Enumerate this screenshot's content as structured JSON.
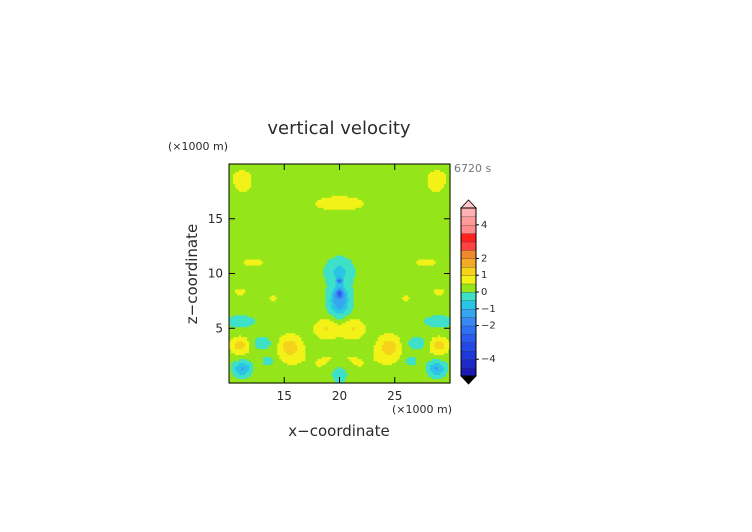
{
  "chart_data": {
    "type": "heatmap",
    "title": "vertical velocity",
    "time_label": "6720 s",
    "xlabel": "x−coordinate",
    "ylabel": "z−coordinate",
    "x_unit": "(×1000 m)",
    "y_unit": "(×1000 m)",
    "xlim": [
      10,
      30
    ],
    "ylim": [
      0,
      20
    ],
    "x_ticks": [
      15,
      20,
      25
    ],
    "y_ticks": [
      5,
      10,
      15
    ],
    "x_tick_labels": [
      "15",
      "20",
      "25"
    ],
    "y_tick_labels": [
      "5",
      "10",
      "15"
    ],
    "colorbar": {
      "levels": [
        -5,
        -4.5,
        -4,
        -3.5,
        -3,
        -2.5,
        -2,
        -1.5,
        -1,
        -0.5,
        0,
        0.5,
        1,
        1.5,
        2,
        2.5,
        3,
        3.5,
        4,
        4.5,
        5
      ],
      "colors": [
        "#1a1ab4",
        "#1e2ac8",
        "#2038d8",
        "#2448e6",
        "#2a5af0",
        "#3070f4",
        "#3a88f4",
        "#36a6f0",
        "#2cc4e4",
        "#3ee0c8",
        "#94e61a",
        "#f2f218",
        "#f6d21a",
        "#f2aa24",
        "#f0882c",
        "#ff4242",
        "#ff2020",
        "#ff8c8c",
        "#ff9a9a",
        "#ffb0b0"
      ],
      "under_color": "#000000",
      "over_color": "#ffc8c8",
      "tick_values": [
        -4,
        -2,
        -1,
        0,
        1,
        2,
        4
      ],
      "tick_labels": [
        "−4",
        "−2",
        "−1",
        "0",
        "1",
        "2",
        "4"
      ]
    },
    "background_value": 0.2,
    "features": [
      {
        "kind": "band",
        "z_center": 19.3,
        "z_half": 1.4,
        "value": 0.3
      },
      {
        "kind": "blob",
        "x": 20,
        "z": 16.4,
        "rx": 5.6,
        "rz": 1.6,
        "value": 0.35
      },
      {
        "kind": "blob",
        "x": 11.2,
        "z": 18.2,
        "rx": 1.6,
        "rz": 1.6,
        "value": 0.35
      },
      {
        "kind": "blob",
        "x": 28.8,
        "z": 18.2,
        "rx": 1.6,
        "rz": 1.6,
        "value": 0.35
      },
      {
        "kind": "blob",
        "x": 20,
        "z": 10.2,
        "rx": 1.2,
        "rz": 1.2,
        "value": -0.8
      },
      {
        "kind": "blob",
        "x": 20,
        "z": 7.5,
        "rx": 0.9,
        "rz": 1.4,
        "value": -1.6
      },
      {
        "kind": "blob",
        "x": 20,
        "z": 9.3,
        "rx": 0.25,
        "rz": 0.25,
        "value": -1.8
      },
      {
        "kind": "blob",
        "x": 20,
        "z": 8.2,
        "rx": 0.3,
        "rz": 0.3,
        "value": -2.2
      },
      {
        "kind": "blob",
        "x": 12.2,
        "z": 11.0,
        "rx": 2.2,
        "rz": 0.9,
        "value": 0.35
      },
      {
        "kind": "blob",
        "x": 27.8,
        "z": 11.0,
        "rx": 2.2,
        "rz": 0.9,
        "value": 0.35
      },
      {
        "kind": "blob",
        "x": 11.0,
        "z": 8.3,
        "rx": 1.2,
        "rz": 0.8,
        "value": 0.35
      },
      {
        "kind": "blob",
        "x": 29.0,
        "z": 8.3,
        "rx": 1.2,
        "rz": 0.8,
        "value": 0.35
      },
      {
        "kind": "blob",
        "x": 14.0,
        "z": 7.7,
        "rx": 0.9,
        "rz": 0.6,
        "value": 0.35
      },
      {
        "kind": "blob",
        "x": 26.0,
        "z": 7.7,
        "rx": 0.9,
        "rz": 0.6,
        "value": 0.35
      },
      {
        "kind": "blob",
        "x": 11.0,
        "z": 5.6,
        "rx": 1.2,
        "rz": 0.5,
        "value": -0.7
      },
      {
        "kind": "blob",
        "x": 29.0,
        "z": 5.6,
        "rx": 1.2,
        "rz": 0.5,
        "value": -0.7
      },
      {
        "kind": "blob",
        "x": 20,
        "z": 1.8,
        "rx": 5.6,
        "rz": 2.0,
        "value": 0.35
      },
      {
        "kind": "blob",
        "x": 11.0,
        "z": 3.4,
        "rx": 0.9,
        "rz": 0.8,
        "value": 1.0
      },
      {
        "kind": "blob",
        "x": 29.0,
        "z": 3.4,
        "rx": 0.9,
        "rz": 0.8,
        "value": 1.0
      },
      {
        "kind": "blob",
        "x": 15.5,
        "z": 3.3,
        "rx": 1.0,
        "rz": 1.1,
        "value": 1.0
      },
      {
        "kind": "blob",
        "x": 24.5,
        "z": 3.3,
        "rx": 1.0,
        "rz": 1.1,
        "value": 1.0
      },
      {
        "kind": "blob",
        "x": 11.2,
        "z": 1.3,
        "rx": 0.8,
        "rz": 0.7,
        "value": -1.3
      },
      {
        "kind": "blob",
        "x": 28.8,
        "z": 1.3,
        "rx": 0.8,
        "rz": 0.7,
        "value": -1.3
      },
      {
        "kind": "blob",
        "x": 13.0,
        "z": 3.6,
        "rx": 0.9,
        "rz": 0.6,
        "value": -0.6
      },
      {
        "kind": "blob",
        "x": 27.0,
        "z": 3.6,
        "rx": 0.9,
        "rz": 0.6,
        "value": -0.6
      },
      {
        "kind": "blob",
        "x": 20,
        "z": 0.8,
        "rx": 0.9,
        "rz": 0.9,
        "value": -0.8
      },
      {
        "kind": "blob",
        "x": 18.8,
        "z": 5.0,
        "rx": 1.1,
        "rz": 0.9,
        "value": 0.8
      },
      {
        "kind": "blob",
        "x": 21.2,
        "z": 5.0,
        "rx": 1.1,
        "rz": 0.9,
        "value": 0.8
      },
      {
        "kind": "blob",
        "x": 13.5,
        "z": 2.0,
        "rx": 0.5,
        "rz": 0.4,
        "value": -0.7
      },
      {
        "kind": "blob",
        "x": 26.5,
        "z": 2.0,
        "rx": 0.5,
        "rz": 0.4,
        "value": -0.7
      }
    ]
  }
}
